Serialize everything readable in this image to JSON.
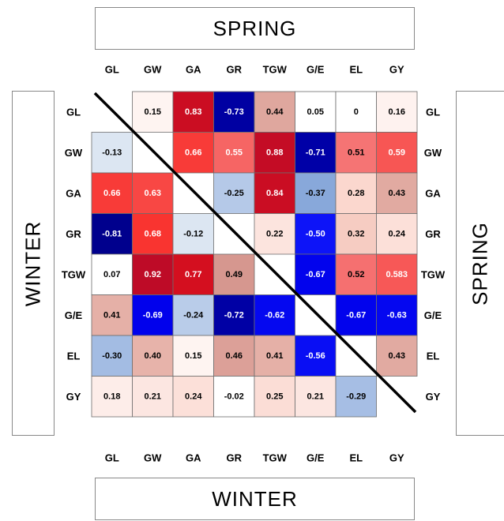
{
  "chart_data": {
    "type": "heatmap",
    "title_top": "SPRING",
    "title_bottom": "WINTER",
    "title_left": "WINTER",
    "title_right": "SPRING",
    "variables": [
      "GL",
      "GW",
      "GA",
      "GR",
      "TGW",
      "G/E",
      "EL",
      "GY"
    ],
    "matrix": [
      [
        null,
        "0.15",
        "0.83",
        "-0.73",
        "0.44",
        "0.05",
        "0",
        "0.16"
      ],
      [
        "-0.13",
        null,
        "0.66",
        "0.55",
        "0.88",
        "-0.71",
        "0.51",
        "0.59"
      ],
      [
        "0.66",
        "0.63",
        null,
        "-0.25",
        "0.84",
        "-0.37",
        "0.28",
        "0.43"
      ],
      [
        "-0.81",
        "0.68",
        "-0.12",
        null,
        "0.22",
        "-0.50",
        "0.32",
        "0.24"
      ],
      [
        "0.07",
        "0.92",
        "0.77",
        "0.49",
        null,
        "-0.67",
        "0.52",
        "0.583"
      ],
      [
        "0.41",
        "-0.69",
        "-0.24",
        "-0.72",
        "-0.62",
        null,
        "-0.67",
        "-0.63"
      ],
      [
        "-0.30",
        "0.40",
        "0.15",
        "0.46",
        "0.41",
        "-0.56",
        null,
        "0.43"
      ],
      [
        "0.18",
        "0.21",
        "0.24",
        "-0.02",
        "0.25",
        "0.21",
        "-0.29",
        null
      ]
    ],
    "upper_triangle": "SPRING",
    "lower_triangle": "WINTER",
    "diagonal_line": true
  }
}
